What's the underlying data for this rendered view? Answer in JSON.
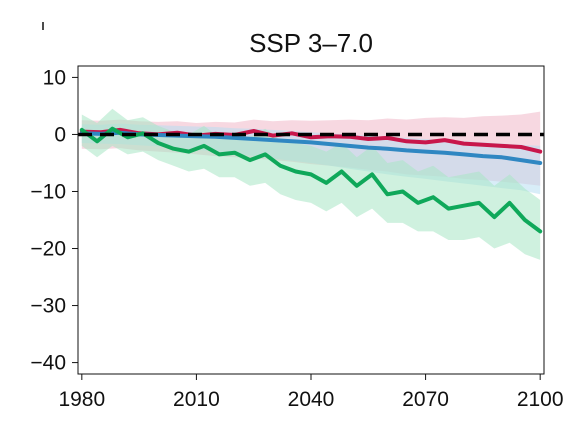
{
  "chart_data": {
    "type": "line",
    "title": "SSP 3–7.0",
    "xlabel": "",
    "ylabel": "",
    "xlim": [
      1979,
      2101
    ],
    "ylim": [
      -42,
      12
    ],
    "xticks": [
      1980,
      2010,
      2040,
      2070,
      2100
    ],
    "yticks": [
      10,
      0,
      -10,
      -20,
      -30,
      -40
    ],
    "xtick_labels": [
      "1980",
      "2010",
      "2040",
      "2070",
      "2100"
    ],
    "ytick_labels": [
      "10",
      "0",
      "−10",
      "−20",
      "−30",
      "−40"
    ],
    "grid": false,
    "legend": "none",
    "reference_line": {
      "y": 0,
      "style": "dashed",
      "color": "#000000"
    },
    "series": [
      {
        "color": "#c8174b",
        "band_color": "#f0b8c8",
        "x": [
          1980,
          1985,
          1990,
          1995,
          2000,
          2005,
          2010,
          2015,
          2020,
          2025,
          2030,
          2035,
          2040,
          2045,
          2050,
          2055,
          2060,
          2065,
          2070,
          2075,
          2080,
          2085,
          2090,
          2095,
          2100
        ],
        "y": [
          0.5,
          0.4,
          0.8,
          0.2,
          0.0,
          0.3,
          -0.2,
          0.1,
          -0.1,
          0.6,
          -0.2,
          0.2,
          -0.5,
          -0.3,
          -0.4,
          -0.8,
          -0.6,
          -1.2,
          -1.4,
          -1.0,
          -1.6,
          -1.8,
          -2.0,
          -2.2,
          -3.0
        ],
        "lower": [
          -2.5,
          -2.6,
          -2.4,
          -2.8,
          -3.0,
          -3.2,
          -3.5,
          -3.8,
          -4.0,
          -4.2,
          -4.5,
          -4.8,
          -5.2,
          -5.5,
          -5.8,
          -6.2,
          -6.5,
          -7.0,
          -7.2,
          -7.4,
          -7.8,
          -8.0,
          -8.3,
          -8.6,
          -9.0
        ],
        "upper": [
          2.5,
          2.4,
          2.6,
          2.3,
          2.2,
          2.3,
          2.0,
          2.2,
          2.1,
          2.6,
          2.3,
          2.5,
          2.4,
          2.5,
          2.6,
          2.5,
          2.8,
          2.6,
          2.9,
          3.0,
          2.9,
          3.2,
          3.3,
          3.5,
          4.0
        ]
      },
      {
        "color": "#2f87c2",
        "band_color": "#b8def2",
        "x": [
          1980,
          1985,
          1990,
          1995,
          2000,
          2005,
          2010,
          2015,
          2020,
          2025,
          2030,
          2035,
          2040,
          2045,
          2050,
          2055,
          2060,
          2065,
          2070,
          2075,
          2080,
          2085,
          2090,
          2095,
          2100
        ],
        "y": [
          0.2,
          0.1,
          0.3,
          0.0,
          -0.1,
          -0.2,
          -0.3,
          -0.4,
          -0.6,
          -0.8,
          -1.0,
          -1.2,
          -1.4,
          -1.7,
          -2.0,
          -2.3,
          -2.5,
          -2.8,
          -3.0,
          -3.2,
          -3.5,
          -3.8,
          -4.0,
          -4.5,
          -5.0
        ],
        "lower": [
          -1.5,
          -1.6,
          -1.7,
          -1.9,
          -2.1,
          -2.4,
          -2.7,
          -3.0,
          -3.4,
          -3.8,
          -4.2,
          -4.6,
          -5.0,
          -5.5,
          -6.0,
          -6.5,
          -7.0,
          -7.4,
          -7.8,
          -8.2,
          -8.6,
          -9.0,
          -9.4,
          -9.8,
          -10.5
        ],
        "upper": [
          1.8,
          1.7,
          1.9,
          1.7,
          1.6,
          1.5,
          1.4,
          1.3,
          1.1,
          1.0,
          0.8,
          0.6,
          0.4,
          0.2,
          0.0,
          -0.2,
          -0.4,
          -0.6,
          -0.8,
          -1.0,
          -1.2,
          -1.4,
          -1.6,
          -1.8,
          -2.0
        ]
      },
      {
        "color": "#0fa85a",
        "band_color": "#a8e6c4",
        "x": [
          1980,
          1984,
          1988,
          1992,
          1996,
          2000,
          2004,
          2008,
          2012,
          2016,
          2020,
          2024,
          2028,
          2032,
          2036,
          2040,
          2044,
          2048,
          2052,
          2056,
          2060,
          2064,
          2068,
          2072,
          2076,
          2080,
          2084,
          2088,
          2092,
          2096,
          2100
        ],
        "y": [
          0.8,
          -1.2,
          1.0,
          -0.5,
          0.2,
          -1.5,
          -2.5,
          -3.0,
          -2.0,
          -3.5,
          -3.2,
          -4.5,
          -3.5,
          -5.5,
          -6.5,
          -7.0,
          -8.5,
          -6.5,
          -9.0,
          -7.0,
          -10.5,
          -10.0,
          -12.0,
          -11.0,
          -13.0,
          -12.5,
          -12.0,
          -14.5,
          -12.0,
          -15.0,
          -17.0
        ],
        "lower": [
          -2.0,
          -4.0,
          -2.0,
          -3.5,
          -3.0,
          -4.5,
          -5.5,
          -6.5,
          -6.0,
          -7.5,
          -7.5,
          -9.0,
          -8.5,
          -10.5,
          -11.5,
          -12.0,
          -13.5,
          -12.0,
          -14.5,
          -13.0,
          -15.5,
          -15.5,
          -17.0,
          -17.0,
          -18.5,
          -18.5,
          -18.0,
          -20.0,
          -19.0,
          -21.0,
          -22.0
        ],
        "upper": [
          3.5,
          2.0,
          4.5,
          2.5,
          3.0,
          1.5,
          0.5,
          0.0,
          1.5,
          -0.5,
          0.0,
          -0.5,
          1.0,
          -1.0,
          -1.5,
          -2.0,
          -3.0,
          -1.5,
          -4.0,
          -2.0,
          -5.0,
          -4.5,
          -6.5,
          -5.5,
          -7.5,
          -7.0,
          -6.5,
          -9.0,
          -7.0,
          -9.5,
          -11.5
        ]
      }
    ]
  }
}
